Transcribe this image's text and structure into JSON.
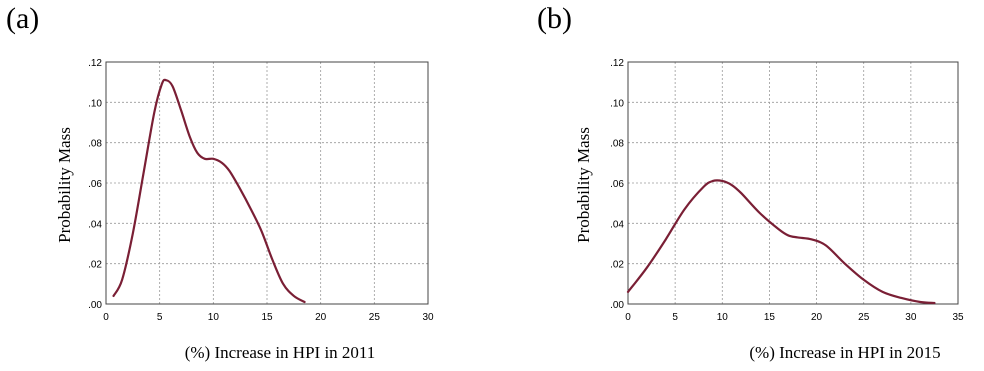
{
  "chart_data": [
    {
      "type": "line",
      "panel_label": "(a)",
      "xlabel": "(%) Increase in HPI in 2011",
      "ylabel": "Probability Mass",
      "xlim": [
        0,
        30
      ],
      "ylim": [
        0,
        0.12
      ],
      "x_ticks": [
        "0",
        "5",
        "10",
        "15",
        "20",
        "25",
        "30"
      ],
      "y_ticks": [
        ".00",
        ".02",
        ".04",
        ".06",
        ".08",
        ".10",
        ".12"
      ],
      "grid": true,
      "line_color": "#7a1f35",
      "series": [
        {
          "x": [
            0.7,
            1.5,
            2.5,
            3.5,
            4.5,
            5.2,
            5.6,
            6.2,
            7.0,
            7.8,
            8.5,
            9.2,
            10.0,
            10.8,
            11.5,
            12.5,
            13.5,
            14.5,
            15.5,
            16.5,
            17.5,
            18.5
          ],
          "values": [
            0.004,
            0.012,
            0.035,
            0.065,
            0.095,
            0.109,
            0.111,
            0.108,
            0.096,
            0.083,
            0.075,
            0.072,
            0.072,
            0.07,
            0.066,
            0.057,
            0.047,
            0.036,
            0.022,
            0.01,
            0.004,
            0.001
          ]
        }
      ]
    },
    {
      "type": "line",
      "panel_label": "(b)",
      "xlabel": "(%) Increase in HPI in 2015",
      "ylabel": "Probability Mass",
      "xlim": [
        0,
        35
      ],
      "ylim": [
        0,
        0.12
      ],
      "x_ticks": [
        "0",
        "5",
        "10",
        "15",
        "20",
        "25",
        "30",
        "35"
      ],
      "y_ticks": [
        ".00",
        ".02",
        ".04",
        ".06",
        ".08",
        ".10",
        ".12"
      ],
      "grid": true,
      "line_color": "#7a1f35",
      "series": [
        {
          "x": [
            0,
            2,
            4,
            6,
            8,
            9,
            10,
            11,
            12,
            14,
            16,
            17,
            18,
            19.5,
            21,
            23,
            25,
            27,
            29,
            31,
            32.5
          ],
          "values": [
            0.006,
            0.018,
            0.032,
            0.047,
            0.058,
            0.061,
            0.061,
            0.059,
            0.055,
            0.045,
            0.037,
            0.034,
            0.033,
            0.032,
            0.029,
            0.02,
            0.012,
            0.006,
            0.003,
            0.001,
            0.0005
          ]
        }
      ]
    }
  ]
}
